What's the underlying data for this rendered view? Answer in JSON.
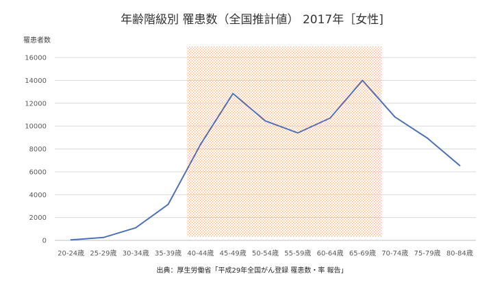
{
  "chart_data": {
    "type": "line",
    "title": "年齢階級別 罹患数（全国推計値） 2017年［女性]",
    "ylabel": "罹患者数",
    "xlabel": "",
    "source": "出典：厚生労働省「平成29年全国がん登録 罹患数・率 報告」",
    "categories": [
      "20-24歳",
      "25-29歳",
      "30-34歳",
      "35-39歳",
      "40-44歳",
      "45-49歳",
      "50-54歳",
      "55-59歳",
      "60-64歳",
      "65-69歳",
      "70-74歳",
      "75-79歳",
      "80-84歳"
    ],
    "series": [
      {
        "values": [
          50,
          250,
          1100,
          3150,
          8400,
          12850,
          10450,
          9400,
          10700,
          14000,
          10800,
          8950,
          6550
        ],
        "color": "#4e70b5"
      }
    ],
    "ylim": [
      0,
      16000
    ],
    "yticks": [
      0,
      2000,
      4000,
      6000,
      8000,
      10000,
      12000,
      14000,
      16000
    ],
    "grid": true,
    "highlight": {
      "from": "40-44歳",
      "to": "65-69歳",
      "color": "#f4b183"
    }
  }
}
